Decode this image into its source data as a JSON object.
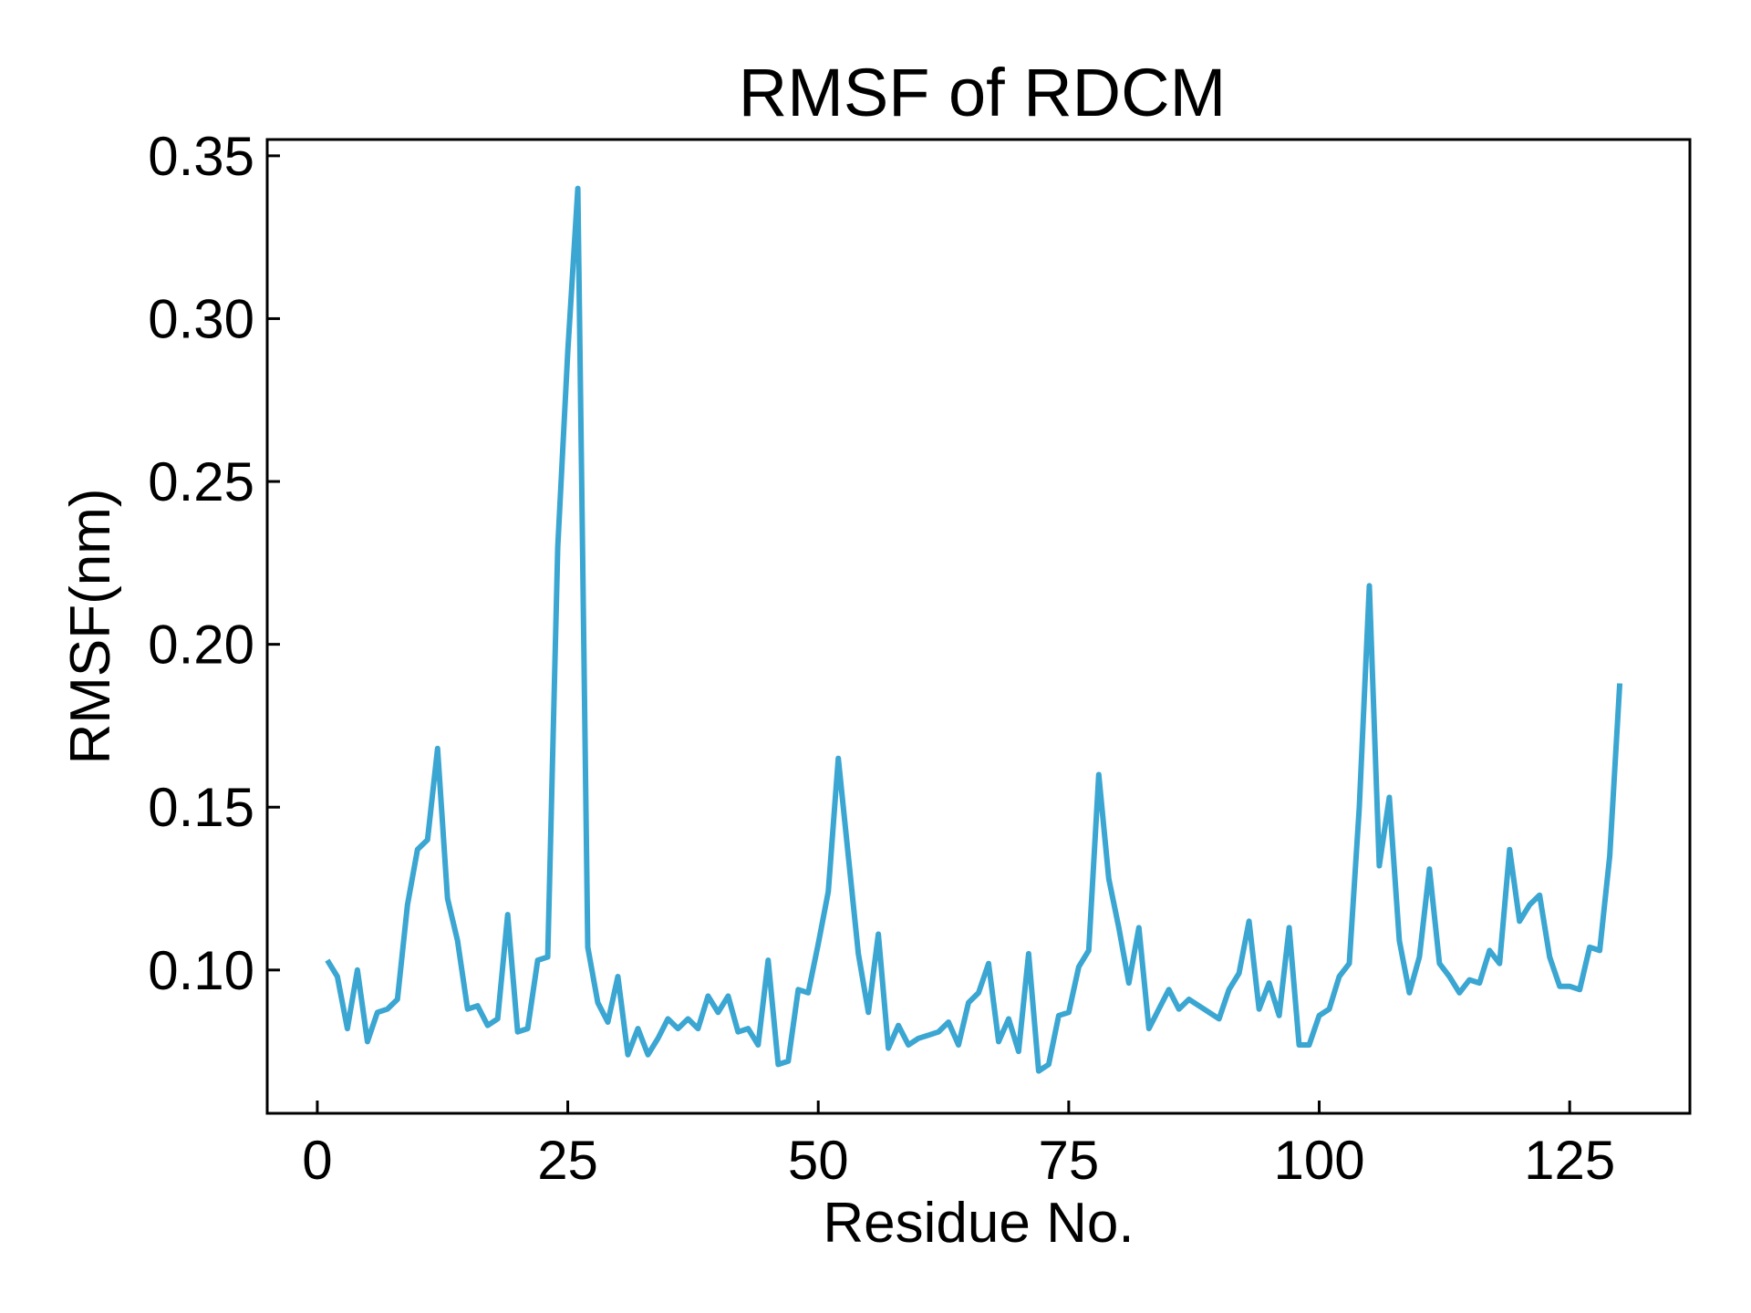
{
  "chart_data": {
    "type": "line",
    "title": "RMSF of RDCM",
    "xlabel": "Residue No.",
    "ylabel": "RMSF(nm)",
    "xlim": [
      -5,
      137
    ],
    "ylim": [
      0.056,
      0.355
    ],
    "xticks": [
      0,
      25,
      50,
      75,
      100,
      125
    ],
    "xtick_labels": [
      "0",
      "25",
      "50",
      "75",
      "100",
      "125"
    ],
    "yticks": [
      0.1,
      0.15,
      0.2,
      0.25,
      0.3,
      0.35
    ],
    "ytick_labels": [
      "0.10",
      "0.15",
      "0.20",
      "0.25",
      "0.30",
      "0.35"
    ],
    "grid": false,
    "series": [
      {
        "color": "#3aa6d1",
        "x": [
          1,
          2,
          3,
          4,
          5,
          6,
          7,
          8,
          9,
          10,
          11,
          12,
          13,
          14,
          15,
          16,
          17,
          18,
          19,
          20,
          21,
          22,
          23,
          24,
          25,
          26,
          27,
          28,
          29,
          30,
          31,
          32,
          33,
          34,
          35,
          36,
          37,
          38,
          39,
          40,
          41,
          42,
          43,
          44,
          45,
          46,
          47,
          48,
          49,
          50,
          51,
          52,
          53,
          54,
          55,
          56,
          57,
          58,
          59,
          60,
          61,
          62,
          63,
          64,
          65,
          66,
          67,
          68,
          69,
          70,
          71,
          72,
          73,
          74,
          75,
          76,
          77,
          78,
          79,
          80,
          81,
          82,
          83,
          84,
          85,
          86,
          87,
          88,
          89,
          90,
          91,
          92,
          93,
          94,
          95,
          96,
          97,
          98,
          99,
          100,
          101,
          102,
          103,
          104,
          105,
          106,
          107,
          108,
          109,
          110,
          111,
          112,
          113,
          114,
          115,
          116,
          117,
          118,
          119,
          120,
          121,
          122,
          123,
          124,
          125,
          126,
          127,
          128,
          129,
          130
        ],
        "y": [
          0.103,
          0.098,
          0.082,
          0.1,
          0.078,
          0.087,
          0.088,
          0.091,
          0.12,
          0.137,
          0.14,
          0.168,
          0.122,
          0.109,
          0.088,
          0.089,
          0.083,
          0.085,
          0.117,
          0.081,
          0.082,
          0.103,
          0.104,
          0.23,
          0.29,
          0.34,
          0.107,
          0.09,
          0.084,
          0.098,
          0.074,
          0.082,
          0.074,
          0.079,
          0.085,
          0.082,
          0.085,
          0.082,
          0.092,
          0.087,
          0.092,
          0.081,
          0.082,
          0.077,
          0.103,
          0.071,
          0.072,
          0.094,
          0.093,
          0.108,
          0.124,
          0.165,
          0.135,
          0.105,
          0.087,
          0.111,
          0.076,
          0.083,
          0.077,
          0.079,
          0.08,
          0.081,
          0.084,
          0.077,
          0.09,
          0.093,
          0.102,
          0.078,
          0.085,
          0.075,
          0.105,
          0.069,
          0.071,
          0.086,
          0.087,
          0.101,
          0.106,
          0.16,
          0.128,
          0.113,
          0.096,
          0.113,
          0.082,
          0.088,
          0.094,
          0.088,
          0.091,
          0.089,
          0.087,
          0.085,
          0.094,
          0.099,
          0.115,
          0.088,
          0.096,
          0.086,
          0.113,
          0.077,
          0.077,
          0.086,
          0.088,
          0.098,
          0.102,
          0.15,
          0.218,
          0.132,
          0.153,
          0.109,
          0.093,
          0.104,
          0.131,
          0.102,
          0.098,
          0.093,
          0.097,
          0.096,
          0.106,
          0.102,
          0.137,
          0.115,
          0.12,
          0.123,
          0.104,
          0.095,
          0.095,
          0.094,
          0.107,
          0.106,
          0.135,
          0.188
        ]
      }
    ]
  }
}
